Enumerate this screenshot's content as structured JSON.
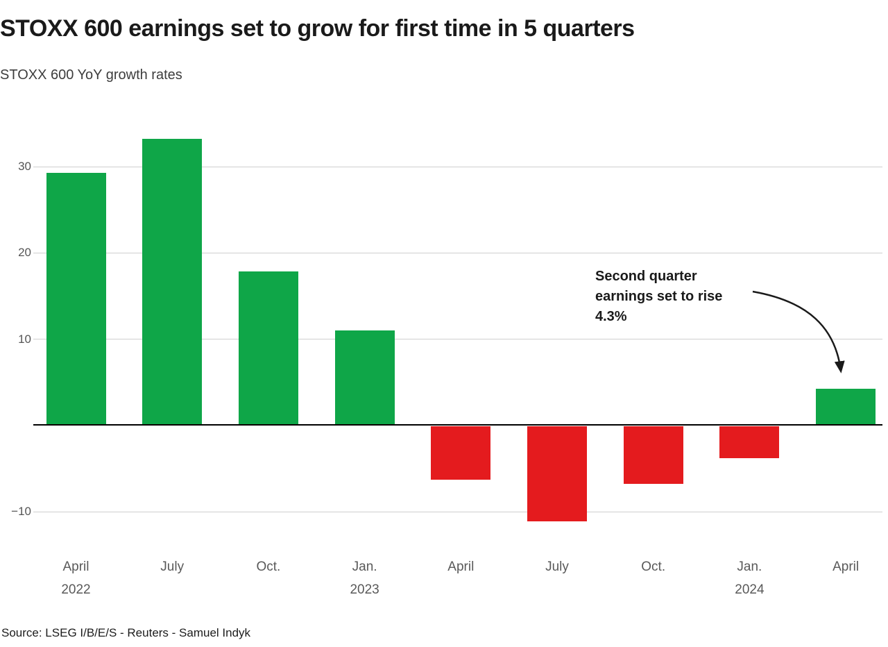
{
  "header": {
    "title": "STOXX 600 earnings set to grow for first time in 5 quarters",
    "subtitle": "STOXX 600 YoY growth rates"
  },
  "annotation": {
    "text": "Second quarter\nearnings set to rise\n4.3%"
  },
  "source": "Source: LSEG I/B/E/S - Reuters - Samuel Indyk",
  "chart_data": {
    "type": "bar",
    "title": "STOXX 600 earnings set to grow for first time in 5 quarters",
    "subtitle": "STOXX 600 YoY growth rates",
    "categories": [
      {
        "month": "April",
        "year": "2022"
      },
      {
        "month": "July",
        "year": ""
      },
      {
        "month": "Oct.",
        "year": ""
      },
      {
        "month": "Jan.",
        "year": "2023"
      },
      {
        "month": "April",
        "year": ""
      },
      {
        "month": "July",
        "year": ""
      },
      {
        "month": "Oct.",
        "year": ""
      },
      {
        "month": "Jan.",
        "year": "2024"
      },
      {
        "month": "April",
        "year": ""
      }
    ],
    "values": [
      29.3,
      33.2,
      17.9,
      11.0,
      -6.2,
      -11.0,
      -6.7,
      -3.7,
      4.3
    ],
    "yticks": [
      30,
      20,
      10,
      -10
    ],
    "ylim": [
      -13,
      36
    ],
    "grid": true,
    "legend": "none",
    "colors": {
      "positive": "#0fa648",
      "negative": "#e41b1e",
      "gridline": "#cfcfcf",
      "axis": "#000000"
    },
    "annotation": {
      "text": "Second quarter earnings set to rise 4.3%",
      "target_category_index": 8,
      "target_value": 4.3
    }
  }
}
